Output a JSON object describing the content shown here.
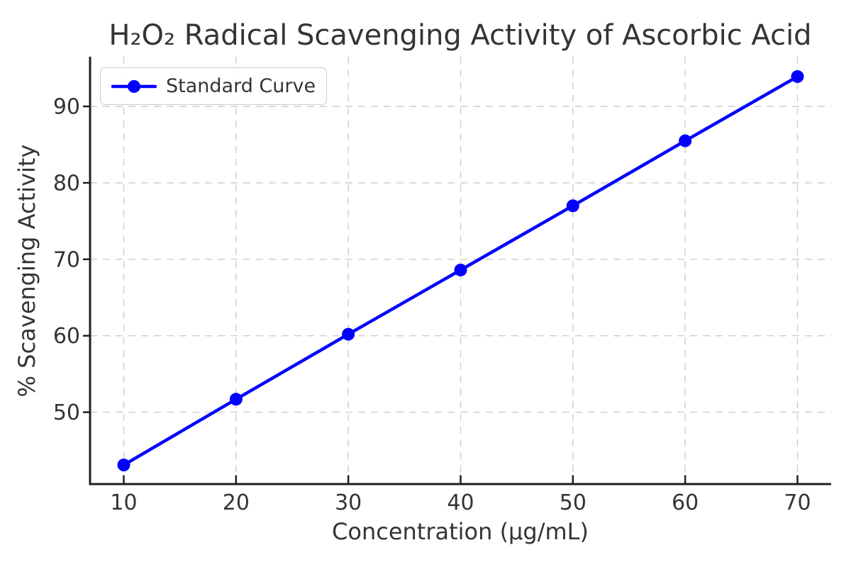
{
  "chart": {
    "window_label": "Line chart figure"
  },
  "chart_data": {
    "type": "line",
    "title": "H₂O₂ Radical Scavenging Activity of Ascorbic Acid",
    "xlabel": "Concentration (µg/mL)",
    "ylabel": "% Scavenging Activity",
    "series": [
      {
        "name": "Standard Curve",
        "x": [
          10,
          20,
          30,
          40,
          50,
          60,
          70
        ],
        "y": [
          43.1,
          51.7,
          60.2,
          68.6,
          77.0,
          85.5,
          93.9
        ]
      }
    ],
    "xticks": [
      10,
      20,
      30,
      40,
      50,
      60,
      70
    ],
    "yticks": [
      50,
      60,
      70,
      80,
      90
    ],
    "xlim": [
      7,
      73
    ],
    "ylim": [
      40.6,
      96.5
    ],
    "grid": "both, dashed",
    "legend_position": "upper left",
    "marker": "circle",
    "colors": {
      "line": "#0000ff",
      "text": "#343434",
      "spine": "#1f1f1f",
      "grid": "#cdcdcd",
      "legend_border": "#cccccc",
      "background": "#ffffff"
    }
  }
}
